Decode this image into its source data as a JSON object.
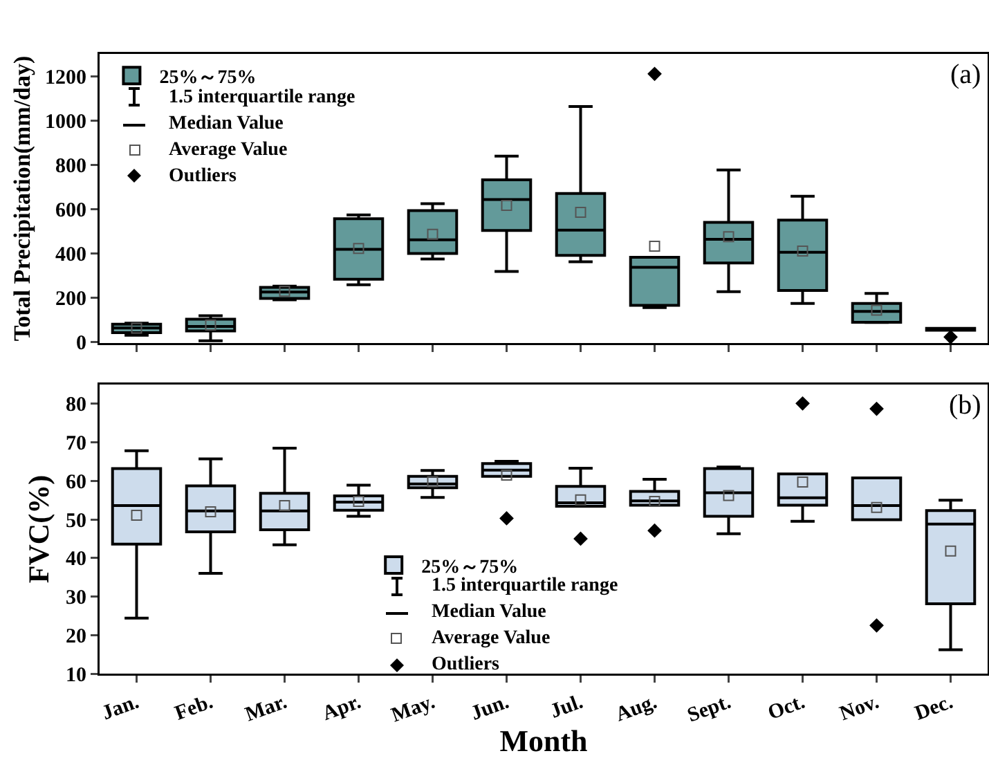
{
  "chart_data": [
    {
      "type": "box",
      "categories": [
        null,
        null,
        null,
        null,
        null,
        null,
        null,
        null,
        null,
        null,
        null,
        null
      ],
      "ylabel": "Total Precipitation(mm/day)",
      "ylim": [
        -5,
        1300
      ],
      "yticks": [
        0,
        200,
        400,
        600,
        800,
        1000,
        1200
      ],
      "tick_labels": "y",
      "legend": "top left",
      "annotations": [
        "1.5 interquartile range",
        "Median Value",
        "Average Value",
        "Outliers",
        "(a)"
      ],
      "series": [
        {
          "name": "25%～75%",
          "color": "#639a9a",
          "boxes": [
            {
              "low": 30,
              "q1": 42,
              "median": 63,
              "q3": 80,
              "high": 85,
              "mean": 62
            },
            {
              "low": 5,
              "q1": 50,
              "median": 70,
              "q3": 103,
              "high": 118,
              "mean": 76
            },
            {
              "low": 190,
              "q1": 196,
              "median": 225,
              "q3": 246,
              "high": 252,
              "mean": 228
            },
            {
              "low": 258,
              "q1": 283,
              "median": 418,
              "q3": 556,
              "high": 573,
              "mean": 422
            },
            {
              "low": 374,
              "q1": 399,
              "median": 461,
              "q3": 593,
              "high": 624,
              "mean": 486
            },
            {
              "low": 318,
              "q1": 503,
              "median": 643,
              "q3": 732,
              "high": 839,
              "mean": 616
            },
            {
              "low": 362,
              "q1": 391,
              "median": 505,
              "q3": 670,
              "high": 1063,
              "mean": 585
            },
            {
              "low": 155,
              "q1": 165,
              "median": 337,
              "q3": 382,
              "high": 382,
              "mean": 432,
              "outliers": [
                1210
              ]
            },
            {
              "low": 227,
              "q1": 356,
              "median": 463,
              "q3": 540,
              "high": 776,
              "mean": 475
            },
            {
              "low": 174,
              "q1": 232,
              "median": 405,
              "q3": 550,
              "high": 658,
              "mean": 410
            },
            {
              "low": 88,
              "q1": 89,
              "median": 138,
              "q3": 174,
              "high": 219,
              "mean": 143
            },
            {
              "low": 53,
              "q1": 53,
              "median": 57,
              "q3": 61,
              "high": 61,
              "outliers": [
                22
              ]
            }
          ]
        }
      ]
    },
    {
      "type": "box",
      "categories": [
        "Jan.",
        "Feb.",
        "Mar.",
        "Apr.",
        "May.",
        "Jun.",
        "Jul.",
        "Aug.",
        "Sept.",
        "Oct.",
        "Nov.",
        "Dec."
      ],
      "xlabel": "Month",
      "ylabel": "FVC(%)",
      "ylim": [
        10,
        85
      ],
      "yticks": [
        10,
        20,
        30,
        40,
        50,
        60,
        70,
        80
      ],
      "legend": "bottom",
      "annotations": [
        "1.5 interquartile range",
        "Median Value",
        "Average Value",
        "Outliers",
        "(b)"
      ],
      "series": [
        {
          "name": "25%～75%",
          "color": "#cddcec",
          "boxes": [
            {
              "low": 24.4,
              "q1": 43.6,
              "median": 53.6,
              "q3": 63.2,
              "high": 67.8,
              "mean": 51.1
            },
            {
              "low": 36.0,
              "q1": 46.8,
              "median": 52.2,
              "q3": 58.7,
              "high": 65.7,
              "mean": 52.0
            },
            {
              "low": 43.4,
              "q1": 47.3,
              "median": 52.2,
              "q3": 56.8,
              "high": 68.5,
              "mean": 53.6
            },
            {
              "low": 50.8,
              "q1": 52.4,
              "median": 54.5,
              "q3": 56.1,
              "high": 58.9,
              "mean": 54.7
            },
            {
              "low": 55.7,
              "q1": 58.2,
              "median": 59.2,
              "q3": 61.2,
              "high": 62.7,
              "mean": 59.8
            },
            {
              "low": 61.2,
              "q1": 61.2,
              "median": 62.8,
              "q3": 64.5,
              "high": 65.1,
              "mean": 61.5,
              "outliers": [
                50.3
              ]
            },
            {
              "low": 53.4,
              "q1": 53.4,
              "median": 54.3,
              "q3": 58.6,
              "high": 63.3,
              "mean": 55.1,
              "outliers": [
                45.0
              ]
            },
            {
              "low": 53.7,
              "q1": 53.7,
              "median": 54.8,
              "q3": 57.3,
              "high": 60.4,
              "mean": 54.7,
              "outliers": [
                47.1
              ]
            },
            {
              "low": 46.3,
              "q1": 50.8,
              "median": 56.9,
              "q3": 63.2,
              "high": 63.6,
              "mean": 56.2
            },
            {
              "low": 49.5,
              "q1": 53.7,
              "median": 55.6,
              "q3": 61.8,
              "high": 61.8,
              "mean": 59.7,
              "outliers": [
                80.1
              ]
            },
            {
              "low": 49.9,
              "q1": 49.9,
              "median": 53.6,
              "q3": 60.8,
              "high": 60.8,
              "mean": 53.1,
              "outliers": [
                78.7,
                22.5
              ]
            },
            {
              "low": 16.2,
              "q1": 28.1,
              "median": 48.8,
              "q3": 52.3,
              "high": 55.0,
              "mean": 41.8
            }
          ]
        }
      ]
    }
  ]
}
